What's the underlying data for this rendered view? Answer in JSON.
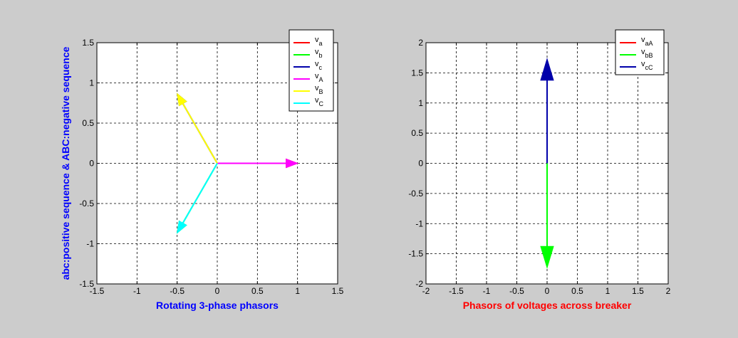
{
  "figure": {
    "background": "#cccccc"
  },
  "chart_data": [
    {
      "type": "phasor",
      "xlabel": "Rotating 3-phase phasors",
      "ylabel": "abc:positive sequence & ABC:negative sequence",
      "label_color": "#0000ff",
      "xlim": [
        -1.5,
        1.5
      ],
      "ylim": [
        -1.5,
        1.5
      ],
      "xticks": [
        -1.5,
        -1,
        -0.5,
        0,
        0.5,
        1,
        1.5
      ],
      "yticks": [
        -1.5,
        -1,
        -0.5,
        0,
        0.5,
        1,
        1.5
      ],
      "grid": true,
      "legend": "top-right",
      "series": [
        {
          "name": "v",
          "sub": "a",
          "color": "#ff0000",
          "x": [
            0,
            1
          ],
          "y": [
            0,
            0
          ]
        },
        {
          "name": "v",
          "sub": "b",
          "color": "#00ff00",
          "x": [
            0,
            -0.5
          ],
          "y": [
            0,
            -0.866
          ]
        },
        {
          "name": "v",
          "sub": "c",
          "color": "#0000aa",
          "x": [
            0,
            -0.5
          ],
          "y": [
            0,
            0.866
          ]
        },
        {
          "name": "v",
          "sub": "A",
          "color": "#ff00ff",
          "x": [
            0,
            1
          ],
          "y": [
            0,
            0
          ]
        },
        {
          "name": "v",
          "sub": "B",
          "color": "#ffff00",
          "x": [
            0,
            -0.5
          ],
          "y": [
            0,
            0.866
          ]
        },
        {
          "name": "v",
          "sub": "C",
          "color": "#00ffff",
          "x": [
            0,
            -0.5
          ],
          "y": [
            0,
            -0.866
          ]
        }
      ]
    },
    {
      "type": "phasor",
      "xlabel": "Phasors of voltages across breaker",
      "ylabel": "",
      "label_color": "#ff0000",
      "xlim": [
        -2,
        2
      ],
      "ylim": [
        -2,
        2
      ],
      "xticks": [
        -2,
        -1.5,
        -1,
        -0.5,
        0,
        0.5,
        1,
        1.5,
        2
      ],
      "yticks": [
        -2,
        -1.5,
        -1,
        -0.5,
        0,
        0.5,
        1,
        1.5,
        2
      ],
      "grid": true,
      "legend": "top-right",
      "series": [
        {
          "name": "v",
          "sub": "aA",
          "color": "#ff0000",
          "x": [
            0,
            0
          ],
          "y": [
            0,
            0
          ]
        },
        {
          "name": "v",
          "sub": "bB",
          "color": "#00ff00",
          "x": [
            0,
            0
          ],
          "y": [
            0,
            -1.732
          ]
        },
        {
          "name": "v",
          "sub": "cC",
          "color": "#0000aa",
          "x": [
            0,
            0
          ],
          "y": [
            0,
            1.732
          ]
        }
      ]
    }
  ]
}
